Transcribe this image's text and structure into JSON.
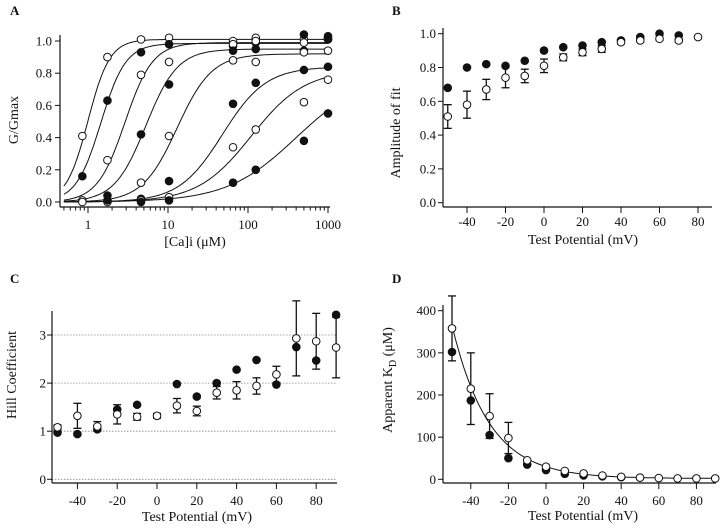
{
  "chart_data": [
    {
      "panel": "A",
      "type": "scatter",
      "xscale": "log",
      "xlabel": "[Ca]i (μM)",
      "ylabel": "G/Gmax",
      "xlim": [
        0.5,
        1000
      ],
      "ylim": [
        0,
        1.05
      ],
      "xticks": [
        1,
        10,
        100,
        1000
      ],
      "xtick_labels": [
        "1",
        "10",
        "100",
        "1000"
      ],
      "yticks": [
        0,
        0.2,
        0.4,
        0.6,
        0.8,
        1.0
      ],
      "ytick_labels": [
        "0.0",
        "0.2",
        "0.4",
        "0.6",
        "0.8",
        "1.0"
      ],
      "grid": false,
      "series": [
        {
          "marker": "open",
          "fit": {
            "type": "hill",
            "max": 1.01,
            "K": 1.0,
            "n": 3.2
          },
          "points": [
            [
              0.85,
              0.41
            ],
            [
              1.75,
              0.9
            ],
            [
              4.6,
              1.01
            ],
            [
              10.3,
              1.02
            ],
            [
              65,
              1.0
            ],
            [
              125,
              1.02
            ],
            [
              500,
              1.01
            ],
            [
              1000,
              1.02
            ]
          ]
        },
        {
          "marker": "filled",
          "fit": {
            "type": "hill",
            "max": 0.985,
            "K": 1.45,
            "n": 2.8
          },
          "points": [
            [
              0.85,
              0.16
            ],
            [
              1.75,
              0.63
            ],
            [
              4.6,
              0.93
            ],
            [
              10.3,
              0.98
            ],
            [
              65,
              0.97
            ],
            [
              125,
              0.99
            ],
            [
              500,
              1.04
            ],
            [
              1000,
              1.03
            ]
          ]
        },
        {
          "marker": "open",
          "fit": {
            "type": "hill",
            "max": 0.99,
            "K": 2.9,
            "n": 2.5
          },
          "points": [
            [
              0.85,
              0.01
            ],
            [
              1.75,
              0.26
            ],
            [
              4.6,
              0.79
            ],
            [
              10.3,
              0.87
            ],
            [
              65,
              0.98
            ],
            [
              125,
              1.0
            ],
            [
              500,
              0.99
            ],
            [
              1000,
              1.01
            ]
          ]
        },
        {
          "marker": "filled",
          "fit": {
            "type": "hill",
            "max": 0.95,
            "K": 5.3,
            "n": 2.2
          },
          "points": [
            [
              1.75,
              0.04
            ],
            [
              4.6,
              0.42
            ],
            [
              10.3,
              0.73
            ],
            [
              65,
              0.94
            ],
            [
              125,
              0.95
            ],
            [
              500,
              0.94
            ],
            [
              1000,
              1.01
            ]
          ]
        },
        {
          "marker": "open",
          "fit": {
            "type": "hill",
            "max": 0.92,
            "K": 13,
            "n": 2.0
          },
          "points": [
            [
              0.85,
              0.0
            ],
            [
              1.75,
              0.0
            ],
            [
              4.6,
              0.12
            ],
            [
              10.3,
              0.41
            ],
            [
              65,
              0.88
            ],
            [
              125,
              0.87
            ],
            [
              500,
              0.93
            ],
            [
              1000,
              0.94
            ]
          ]
        },
        {
          "marker": "filled",
          "fit": {
            "type": "hill",
            "max": 0.84,
            "K": 48,
            "n": 1.6
          },
          "points": [
            [
              1.75,
              0.01
            ],
            [
              4.6,
              0.02
            ],
            [
              10.3,
              0.13
            ],
            [
              65,
              0.61
            ],
            [
              125,
              0.74
            ],
            [
              500,
              0.82
            ],
            [
              1000,
              0.84
            ]
          ]
        },
        {
          "marker": "open",
          "fit": {
            "type": "hill",
            "max": 0.82,
            "K": 110,
            "n": 1.3
          },
          "points": [
            [
              4.6,
              0.01
            ],
            [
              10.3,
              0.03
            ],
            [
              65,
              0.34
            ],
            [
              125,
              0.45
            ],
            [
              500,
              0.62
            ],
            [
              1000,
              0.76
            ]
          ]
        },
        {
          "marker": "filled",
          "fit": {
            "type": "hill",
            "max": 0.8,
            "K": 400,
            "n": 1.0
          },
          "points": [
            [
              4.6,
              0.0
            ],
            [
              10.3,
              0.01
            ],
            [
              65,
              0.12
            ],
            [
              125,
              0.2
            ],
            [
              500,
              0.38
            ],
            [
              1000,
              0.55
            ]
          ]
        }
      ]
    },
    {
      "panel": "B",
      "type": "scatter",
      "xlabel": "Test Potential (mV)",
      "ylabel": "Amplitude of fit",
      "xlim": [
        -55,
        85
      ],
      "ylim": [
        0,
        1.05
      ],
      "xticks": [
        -40,
        -20,
        0,
        20,
        40,
        60,
        80
      ],
      "xtick_labels": [
        "-40",
        "-20",
        "0",
        "20",
        "40",
        "60",
        "80"
      ],
      "yticks": [
        0,
        0.2,
        0.4,
        0.6,
        0.8,
        1.0
      ],
      "ytick_labels": [
        "0.0",
        "0.2",
        "0.4",
        "0.6",
        "0.8",
        "1.0"
      ],
      "grid": false,
      "series": [
        {
          "marker": "filled",
          "points": [
            [
              -50,
              0.68
            ],
            [
              -40,
              0.8
            ],
            [
              -30,
              0.82
            ],
            [
              -20,
              0.81
            ],
            [
              -10,
              0.84
            ],
            [
              0,
              0.9
            ],
            [
              10,
              0.92
            ],
            [
              20,
              0.93
            ],
            [
              30,
              0.95
            ],
            [
              40,
              0.96
            ],
            [
              50,
              0.98
            ],
            [
              60,
              1.0
            ],
            [
              70,
              0.99
            ]
          ]
        },
        {
          "marker": "open",
          "points": [
            [
              -50,
              0.51,
              0.07
            ],
            [
              -40,
              0.58,
              0.08
            ],
            [
              -30,
              0.67,
              0.06
            ],
            [
              -20,
              0.74,
              0.06
            ],
            [
              -10,
              0.75,
              0.04
            ],
            [
              0,
              0.81,
              0.04
            ],
            [
              10,
              0.86,
              0.02
            ],
            [
              20,
              0.89,
              0.02
            ],
            [
              30,
              0.91,
              0.02
            ],
            [
              40,
              0.95,
              0.01
            ],
            [
              50,
              0.96,
              0.01
            ],
            [
              60,
              0.97,
              0.01
            ],
            [
              70,
              0.96,
              0.01
            ],
            [
              80,
              0.98,
              0
            ]
          ]
        }
      ]
    },
    {
      "panel": "C",
      "type": "scatter",
      "xlabel": "Test Potential (mV)",
      "ylabel": "Hill Coefficient",
      "xlim": [
        -52,
        92
      ],
      "ylim": [
        -0.1,
        3.5
      ],
      "xticks": [
        -40,
        -20,
        0,
        20,
        40,
        60,
        80
      ],
      "xtick_labels": [
        "-40",
        "-20",
        "0",
        "20",
        "40",
        "60",
        "80"
      ],
      "yticks": [
        0,
        1,
        2,
        3
      ],
      "ytick_labels": [
        "0",
        "1",
        "2",
        "3"
      ],
      "grid": true,
      "series": [
        {
          "marker": "filled",
          "points": [
            [
              -50,
              0.97
            ],
            [
              -40,
              0.94
            ],
            [
              -30,
              1.04
            ],
            [
              -20,
              1.45
            ],
            [
              -10,
              1.55
            ],
            [
              10,
              1.98
            ],
            [
              20,
              1.72
            ],
            [
              30,
              2.0
            ],
            [
              40,
              2.28
            ],
            [
              50,
              2.48
            ],
            [
              60,
              1.97
            ],
            [
              70,
              2.75
            ],
            [
              80,
              2.47
            ],
            [
              90,
              3.42
            ]
          ]
        },
        {
          "marker": "open",
          "points": [
            [
              -50,
              1.08,
              0.05
            ],
            [
              -40,
              1.32,
              0.26
            ],
            [
              -30,
              1.1,
              0.1
            ],
            [
              -20,
              1.35,
              0.2
            ],
            [
              -10,
              1.3,
              0.07
            ],
            [
              0,
              1.32,
              0.05
            ],
            [
              10,
              1.53,
              0.15
            ],
            [
              20,
              1.42,
              0.1
            ],
            [
              30,
              1.8,
              0.13
            ],
            [
              40,
              1.85,
              0.18
            ],
            [
              50,
              1.94,
              0.17
            ],
            [
              60,
              2.18,
              0.17
            ],
            [
              70,
              2.93,
              0.78
            ],
            [
              80,
              2.87,
              0.58
            ],
            [
              90,
              2.74,
              0.63
            ]
          ]
        }
      ]
    },
    {
      "panel": "D",
      "type": "scatter",
      "xlabel": "Test Potential (mV)",
      "ylabel": "Apparent K",
      "ylabel_sub": "D",
      "ylabel_unit": " (μM)",
      "xlim": [
        -55,
        92
      ],
      "ylim": [
        -10,
        410
      ],
      "xticks": [
        -40,
        -20,
        0,
        20,
        40,
        60,
        80
      ],
      "xtick_labels": [
        "-40",
        "-20",
        "0",
        "20",
        "40",
        "60",
        "80"
      ],
      "yticks": [
        0,
        100,
        200,
        300,
        400
      ],
      "ytick_labels": [
        "0",
        "100",
        "200",
        "300",
        "400"
      ],
      "grid": false,
      "series": [
        {
          "marker": "filled",
          "points": [
            [
              -50,
              302
            ],
            [
              -40,
              187
            ],
            [
              -30,
              105
            ],
            [
              -20,
              50
            ],
            [
              -10,
              35
            ],
            [
              0,
              22
            ],
            [
              10,
              13
            ],
            [
              20,
              9
            ],
            [
              30,
              7
            ],
            [
              40,
              5
            ],
            [
              50,
              4
            ]
          ]
        },
        {
          "marker": "open",
          "fit": {
            "type": "exponential",
            "offset": 2,
            "amplitude": 28,
            "slope_mV": 19.5
          },
          "points": [
            [
              -50,
              358,
              77
            ],
            [
              -40,
              215,
              85
            ],
            [
              -30,
              150,
              53
            ],
            [
              -20,
              98,
              37
            ],
            [
              -10,
              45,
              0
            ],
            [
              0,
              30,
              0
            ],
            [
              10,
              20,
              0
            ],
            [
              20,
              14,
              0
            ],
            [
              30,
              9,
              0
            ],
            [
              40,
              6,
              0
            ],
            [
              50,
              4,
              0
            ],
            [
              60,
              3,
              0
            ],
            [
              70,
              2,
              0
            ],
            [
              80,
              2,
              0
            ],
            [
              90,
              2,
              0
            ]
          ]
        }
      ]
    }
  ]
}
